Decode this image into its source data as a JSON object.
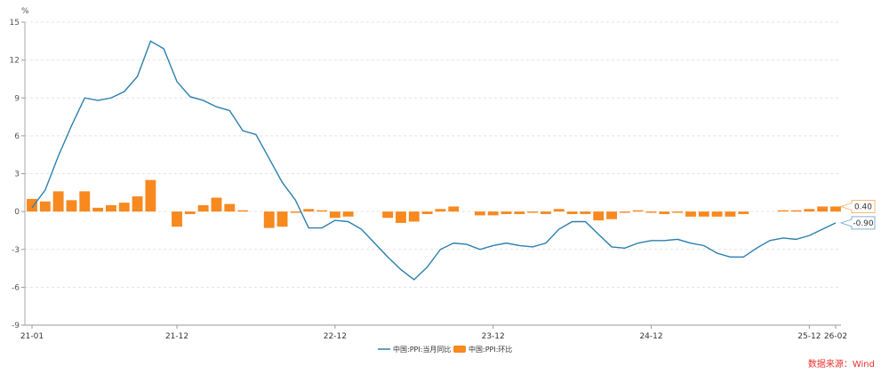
{
  "chart_data": {
    "type": "bar+line",
    "yunit": "%",
    "ylim": [
      -9,
      15
    ],
    "yticks": [
      -9,
      -6,
      -3,
      0,
      3,
      6,
      9,
      12,
      15
    ],
    "grid": true,
    "legend_placement": "bottom",
    "xtick_labels": [
      "21-01",
      "21-12",
      "22-12",
      "23-12",
      "24-12",
      "25-12",
      "26-02"
    ],
    "xtick_months": [
      "2021-01",
      "2021-12",
      "2022-12",
      "2023-12",
      "2024-12",
      "2025-12",
      "2026-02"
    ],
    "start_month": "2021-01",
    "series": [
      {
        "name": "中国:PPI:当月同比",
        "type": "line",
        "color": "#2b7fae",
        "last_label": "-0.90",
        "values": [
          0.3,
          1.7,
          4.4,
          6.8,
          9.0,
          8.8,
          9.0,
          9.5,
          10.7,
          13.5,
          12.9,
          10.3,
          9.1,
          8.8,
          8.3,
          8.0,
          6.4,
          6.1,
          4.2,
          2.3,
          0.9,
          -1.3,
          -1.3,
          -0.7,
          -0.8,
          -1.4,
          -2.5,
          -3.6,
          -4.6,
          -5.4,
          -4.4,
          -3.0,
          -2.5,
          -2.6,
          -3.0,
          -2.7,
          -2.5,
          -2.7,
          -2.8,
          -2.5,
          -1.4,
          -0.8,
          -0.8,
          -1.8,
          -2.8,
          -2.9,
          -2.5,
          -2.3,
          -2.3,
          -2.2,
          -2.5,
          -2.7,
          -3.3,
          -3.6,
          -3.6,
          -2.9,
          -2.3,
          -2.1,
          -2.2,
          -1.9,
          -1.4,
          -0.9
        ]
      },
      {
        "name": "中国:PPI:环比",
        "type": "bar",
        "color": "#f7891f",
        "last_label": "0.40",
        "values": [
          1.0,
          0.8,
          1.6,
          0.9,
          1.6,
          0.3,
          0.5,
          0.7,
          1.2,
          2.5,
          0.0,
          -1.2,
          -0.2,
          0.5,
          1.1,
          0.6,
          0.1,
          0.0,
          -1.3,
          -1.2,
          -0.1,
          0.2,
          0.1,
          -0.5,
          -0.4,
          0.0,
          0.0,
          -0.5,
          -0.9,
          -0.8,
          -0.2,
          0.2,
          0.4,
          0.0,
          -0.3,
          -0.3,
          -0.2,
          -0.2,
          -0.1,
          -0.2,
          0.2,
          -0.2,
          -0.2,
          -0.7,
          -0.6,
          -0.1,
          0.1,
          -0.1,
          -0.2,
          -0.1,
          -0.4,
          -0.4,
          -0.4,
          -0.4,
          -0.2,
          0.0,
          0.0,
          0.1,
          0.1,
          0.2,
          0.4,
          0.4
        ]
      }
    ]
  },
  "source": "数据来源：Wind"
}
